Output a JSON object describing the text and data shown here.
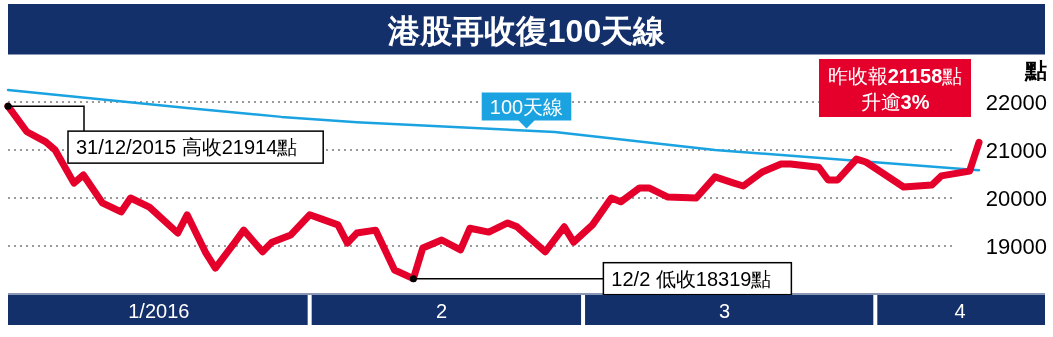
{
  "chart_data": {
    "type": "line",
    "title": "港股再收復100天線",
    "ylabel": "點",
    "xlim": [
      "2015-12-31",
      "2016-04-19"
    ],
    "xticks": [
      {
        "value": "2016-01-16",
        "label": "1/2016"
      },
      {
        "value": "2016-02-15",
        "label": "2"
      },
      {
        "value": "2016-03-16",
        "label": "3"
      },
      {
        "value": "2016-04-10",
        "label": "4"
      }
    ],
    "ylim": [
      18000,
      23000
    ],
    "yticks": [
      19000,
      20000,
      21000,
      22000
    ],
    "grid": "y",
    "legend": false,
    "series": [
      {
        "name": "100天線",
        "color": "#1aa3e0",
        "x": [
          "2015-12-31",
          "2016-01-19",
          "2016-01-29",
          "2016-02-06",
          "2016-02-27",
          "2016-03-15",
          "2016-04-12"
        ],
        "values": [
          22250,
          21875,
          21690,
          21580,
          21375,
          21000,
          20580
        ]
      },
      {
        "color": "#e4002b",
        "x": [
          "2015-12-31",
          "2016-01-02",
          "2016-01-04",
          "2016-01-05",
          "2016-01-07",
          "2016-01-08",
          "2016-01-10",
          "2016-01-12",
          "2016-01-13",
          "2016-01-15",
          "2016-01-18",
          "2016-01-19",
          "2016-01-21",
          "2016-01-22",
          "2016-01-24",
          "2016-01-25",
          "2016-01-27",
          "2016-01-28",
          "2016-01-30",
          "2016-02-01",
          "2016-02-02",
          "2016-02-04",
          "2016-02-05",
          "2016-02-06",
          "2016-02-08",
          "2016-02-10",
          "2016-02-12",
          "2016-02-13",
          "2016-02-15",
          "2016-02-17",
          "2016-02-18",
          "2016-02-20",
          "2016-02-22",
          "2016-02-23",
          "2016-02-26",
          "2016-02-28",
          "2016-02-29",
          "2016-03-02",
          "2016-03-04",
          "2016-03-05",
          "2016-03-07",
          "2016-03-08",
          "2016-03-10",
          "2016-03-13",
          "2016-03-15",
          "2016-03-17",
          "2016-03-18",
          "2016-03-20",
          "2016-03-22",
          "2016-03-23",
          "2016-03-26",
          "2016-03-27",
          "2016-03-28",
          "2016-03-30",
          "2016-03-31",
          "2016-04-04",
          "2016-04-07",
          "2016-04-08",
          "2016-04-11",
          "2016-04-12"
        ],
        "values": [
          21914,
          21380,
          21170,
          21000,
          20310,
          20480,
          19900,
          19710,
          20000,
          19810,
          19270,
          19650,
          18850,
          18540,
          19060,
          19330,
          18880,
          19080,
          19230,
          19650,
          19580,
          19440,
          19060,
          19270,
          19330,
          18500,
          18319,
          18960,
          19125,
          18920,
          19370,
          19290,
          19480,
          19400,
          18880,
          19400,
          19080,
          19440,
          20000,
          19920,
          20210,
          20210,
          20020,
          20000,
          20440,
          20310,
          20250,
          20540,
          20710,
          20710,
          20640,
          20375,
          20375,
          20810,
          20750,
          20230,
          20270,
          20460,
          20560,
          21158
        ]
      }
    ],
    "annotations": [
      {
        "text": "31/12/2015 高收21914點",
        "x": "2015-12-31",
        "y": 21914
      },
      {
        "text": "12/2 低收18319點",
        "x": "2016-02-12",
        "y": 18319
      },
      {
        "text": "昨收報21158點",
        "x": "2016-04-12",
        "y": 21158
      },
      "升逾3%"
    ]
  }
}
